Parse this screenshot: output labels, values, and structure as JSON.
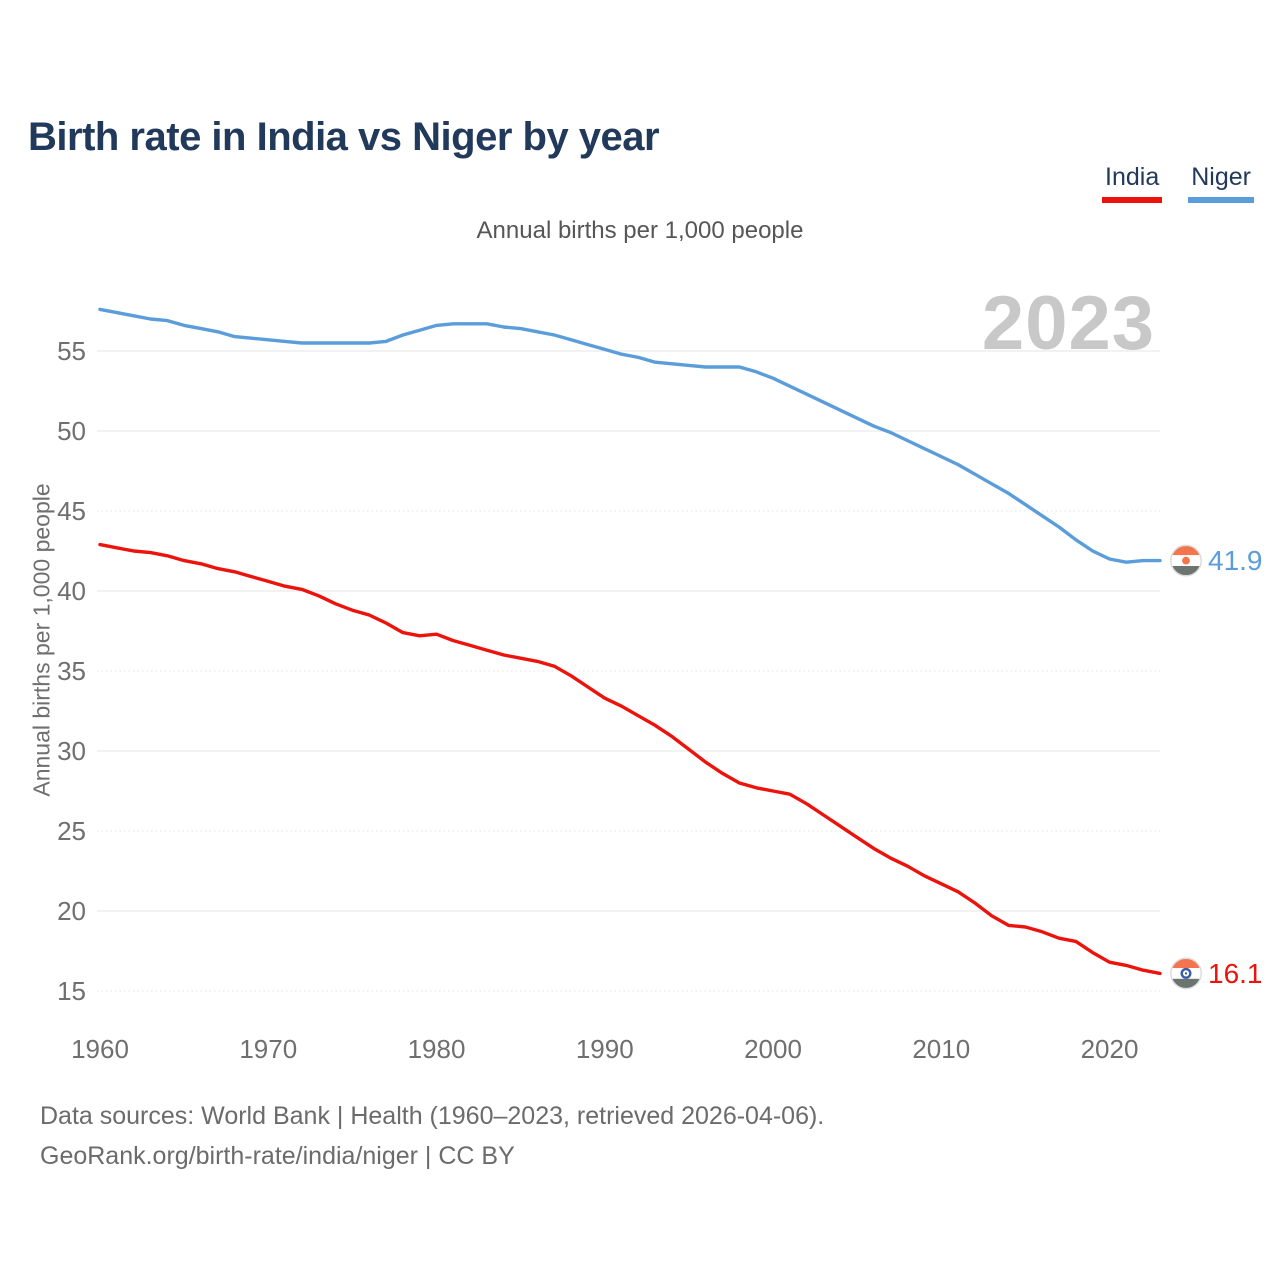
{
  "page": {
    "title": "Birth rate in India vs Niger by year",
    "subtitle": "Annual births per 1,000 people",
    "watermark_year": "2023",
    "footer_line1": "Data sources: World Bank | Health (1960–2023, retrieved 2026-04-06).",
    "footer_line2": "GeoRank.org/birth-rate/india/niger | CC BY"
  },
  "legend": {
    "items": [
      {
        "label": "India",
        "color": "#ec130c"
      },
      {
        "label": "Niger",
        "color": "#5b9dda"
      }
    ]
  },
  "colors": {
    "title_navy": "#21395a",
    "india_red": "#ec130c",
    "niger_blue": "#5b9dda",
    "gridline": "#e9e9e9",
    "tick_text": "#6f6f6f",
    "watermark": "#c8c8c8",
    "flag_orange": "#f4744e",
    "flag_band_green": "#6b746e",
    "flag_white": "#ffffff",
    "flag_border": "#dcdcdc",
    "chakra_navy": "#3a5ba9"
  },
  "chart_data": {
    "type": "line",
    "title": "Birth rate in India vs Niger by year",
    "subtitle": "Annual births per 1,000 people",
    "ylabel": "Annual births per 1,000 people",
    "xlabel": "",
    "grid": "horizontal",
    "legend_position": "top-right",
    "watermark": "2023",
    "xlim": [
      1960,
      2023
    ],
    "ylim": [
      13,
      59
    ],
    "xticks": [
      1960,
      1970,
      1980,
      1990,
      2000,
      2010,
      2020
    ],
    "yticks": [
      15,
      20,
      25,
      30,
      35,
      40,
      45,
      50,
      55
    ],
    "x": [
      1960,
      1961,
      1962,
      1963,
      1964,
      1965,
      1966,
      1967,
      1968,
      1969,
      1970,
      1971,
      1972,
      1973,
      1974,
      1975,
      1976,
      1977,
      1978,
      1979,
      1980,
      1981,
      1982,
      1983,
      1984,
      1985,
      1986,
      1987,
      1988,
      1989,
      1990,
      1991,
      1992,
      1993,
      1994,
      1995,
      1996,
      1997,
      1998,
      1999,
      2000,
      2001,
      2002,
      2003,
      2004,
      2005,
      2006,
      2007,
      2008,
      2009,
      2010,
      2011,
      2012,
      2013,
      2014,
      2015,
      2016,
      2017,
      2018,
      2019,
      2020,
      2021,
      2022,
      2023
    ],
    "series": [
      {
        "name": "India",
        "color": "#ec130c",
        "end_label": "16.1",
        "flag": "india",
        "values": [
          42.9,
          42.7,
          42.5,
          42.4,
          42.2,
          41.9,
          41.7,
          41.4,
          41.2,
          40.9,
          40.6,
          40.3,
          40.1,
          39.7,
          39.2,
          38.8,
          38.5,
          38.0,
          37.4,
          37.2,
          37.3,
          36.9,
          36.6,
          36.3,
          36.0,
          35.8,
          35.6,
          35.3,
          34.7,
          34.0,
          33.3,
          32.8,
          32.2,
          31.6,
          30.9,
          30.1,
          29.3,
          28.6,
          28.0,
          27.7,
          27.5,
          27.3,
          26.7,
          26.0,
          25.3,
          24.6,
          23.9,
          23.3,
          22.8,
          22.2,
          21.7,
          21.2,
          20.5,
          19.7,
          19.1,
          19.0,
          18.7,
          18.3,
          18.1,
          17.4,
          16.8,
          16.6,
          16.3,
          16.1
        ]
      },
      {
        "name": "Niger",
        "color": "#5b9dda",
        "end_label": "41.9",
        "flag": "niger",
        "values": [
          57.6,
          57.4,
          57.2,
          57.0,
          56.9,
          56.6,
          56.4,
          56.2,
          55.9,
          55.8,
          55.7,
          55.6,
          55.5,
          55.5,
          55.5,
          55.5,
          55.5,
          55.6,
          56.0,
          56.3,
          56.6,
          56.7,
          56.7,
          56.7,
          56.5,
          56.4,
          56.2,
          56.0,
          55.7,
          55.4,
          55.1,
          54.8,
          54.6,
          54.3,
          54.2,
          54.1,
          54.0,
          54.0,
          54.0,
          53.7,
          53.3,
          52.8,
          52.3,
          51.8,
          51.3,
          50.8,
          50.3,
          49.9,
          49.4,
          48.9,
          48.4,
          47.9,
          47.3,
          46.7,
          46.1,
          45.4,
          44.7,
          44.0,
          43.2,
          42.5,
          42.0,
          41.8,
          41.9,
          41.9
        ]
      }
    ]
  }
}
